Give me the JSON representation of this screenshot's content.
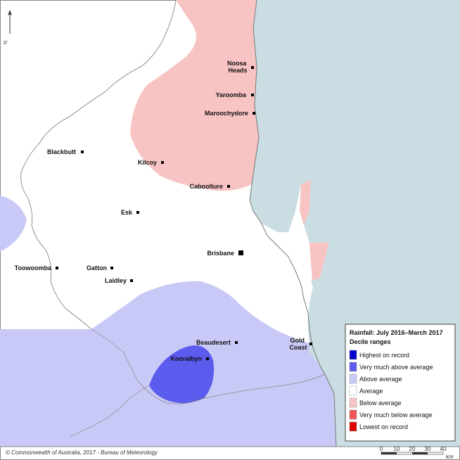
{
  "map": {
    "places": [
      {
        "id": "noosa-heads",
        "label_lines": [
          "Noosa",
          "Heads"
        ]
      },
      {
        "id": "yaroomba",
        "label": "Yaroomba"
      },
      {
        "id": "maroochydore",
        "label": "Maroochydore"
      },
      {
        "id": "blackbutt",
        "label": "Blackbutt"
      },
      {
        "id": "kilcoy",
        "label": "Kilcoy"
      },
      {
        "id": "caboolture",
        "label": "Caboolture"
      },
      {
        "id": "esk",
        "label": "Esk"
      },
      {
        "id": "brisbane",
        "label": "Brisbane"
      },
      {
        "id": "toowoomba",
        "label": "Toowoomba"
      },
      {
        "id": "gatton",
        "label": "Gatton"
      },
      {
        "id": "laidley",
        "label": "Laidley"
      },
      {
        "id": "beaudesert",
        "label": "Beaudesert"
      },
      {
        "id": "kooralbyn",
        "label": "Kooralbyn"
      },
      {
        "id": "gold-coast",
        "label_lines": [
          "Gold",
          "Coast"
        ]
      }
    ],
    "north_arrow_label": "N",
    "footer": "© Commonwealth of Australia, 2017 - Bureau of Meteorology",
    "scale_bar": {
      "ticks": [
        "0",
        "10",
        "20",
        "30",
        "40"
      ],
      "unit": "km"
    }
  },
  "legend": {
    "title": "Rainfall: July 2016–March 2017",
    "subtitle": "Decile ranges",
    "items": [
      {
        "label": "Highest on record",
        "color": "#0000cc"
      },
      {
        "label": "Very much above average",
        "color": "#5b5bee"
      },
      {
        "label": "Above average",
        "color": "#c9c9f7"
      },
      {
        "label": "Average",
        "color": "#ffffff"
      },
      {
        "label": "Below average",
        "color": "#f7c3c3"
      },
      {
        "label": "Very much below average",
        "color": "#ee5555"
      },
      {
        "label": "Lowest on record",
        "color": "#dd0000"
      }
    ]
  },
  "colors": {
    "ocean": "#c9dde2",
    "above_average": "#c9c9f7",
    "very_much_above_average": "#5b5bee",
    "below_average": "#f7c3c3"
  }
}
